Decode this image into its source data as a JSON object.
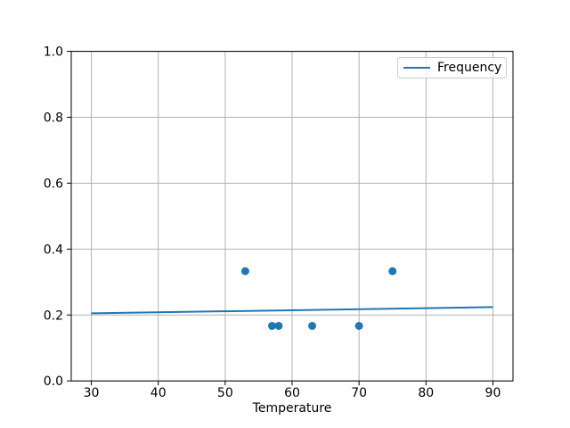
{
  "figure": {
    "background": "#ffffff"
  },
  "chart_data": {
    "type": "scatter",
    "title": "",
    "xlabel": "Temperature",
    "ylabel": "",
    "xlim": [
      27,
      93
    ],
    "ylim": [
      0.0,
      1.0
    ],
    "xticks": [
      30,
      40,
      50,
      60,
      70,
      80,
      90
    ],
    "xtick_labels": [
      "30",
      "40",
      "50",
      "60",
      "70",
      "80",
      "90"
    ],
    "yticks": [
      0.0,
      0.2,
      0.4,
      0.6,
      0.8,
      1.0
    ],
    "ytick_labels": [
      "0.0",
      "0.2",
      "0.4",
      "0.6",
      "0.8",
      "1.0"
    ],
    "grid": true,
    "colors": {
      "accent": "#1f77b4",
      "grid": "#b0b0b0",
      "spine": "#000000",
      "text": "#000000",
      "legend_border": "#cccccc",
      "background": "#ffffff"
    },
    "scatter_points": {
      "color": "#1f77b4",
      "x": [
        53,
        57,
        58,
        63,
        70,
        75
      ],
      "y": [
        0.333,
        0.167,
        0.167,
        0.167,
        0.167,
        0.333
      ]
    },
    "series": [
      {
        "name": "Frequency",
        "type": "line",
        "color": "#1f77b4",
        "x": [
          30,
          90
        ],
        "y": [
          0.205,
          0.224
        ]
      }
    ],
    "legend": {
      "position": "upper right",
      "entries": [
        {
          "label": "Frequency",
          "color": "#1f77b4"
        }
      ]
    }
  }
}
